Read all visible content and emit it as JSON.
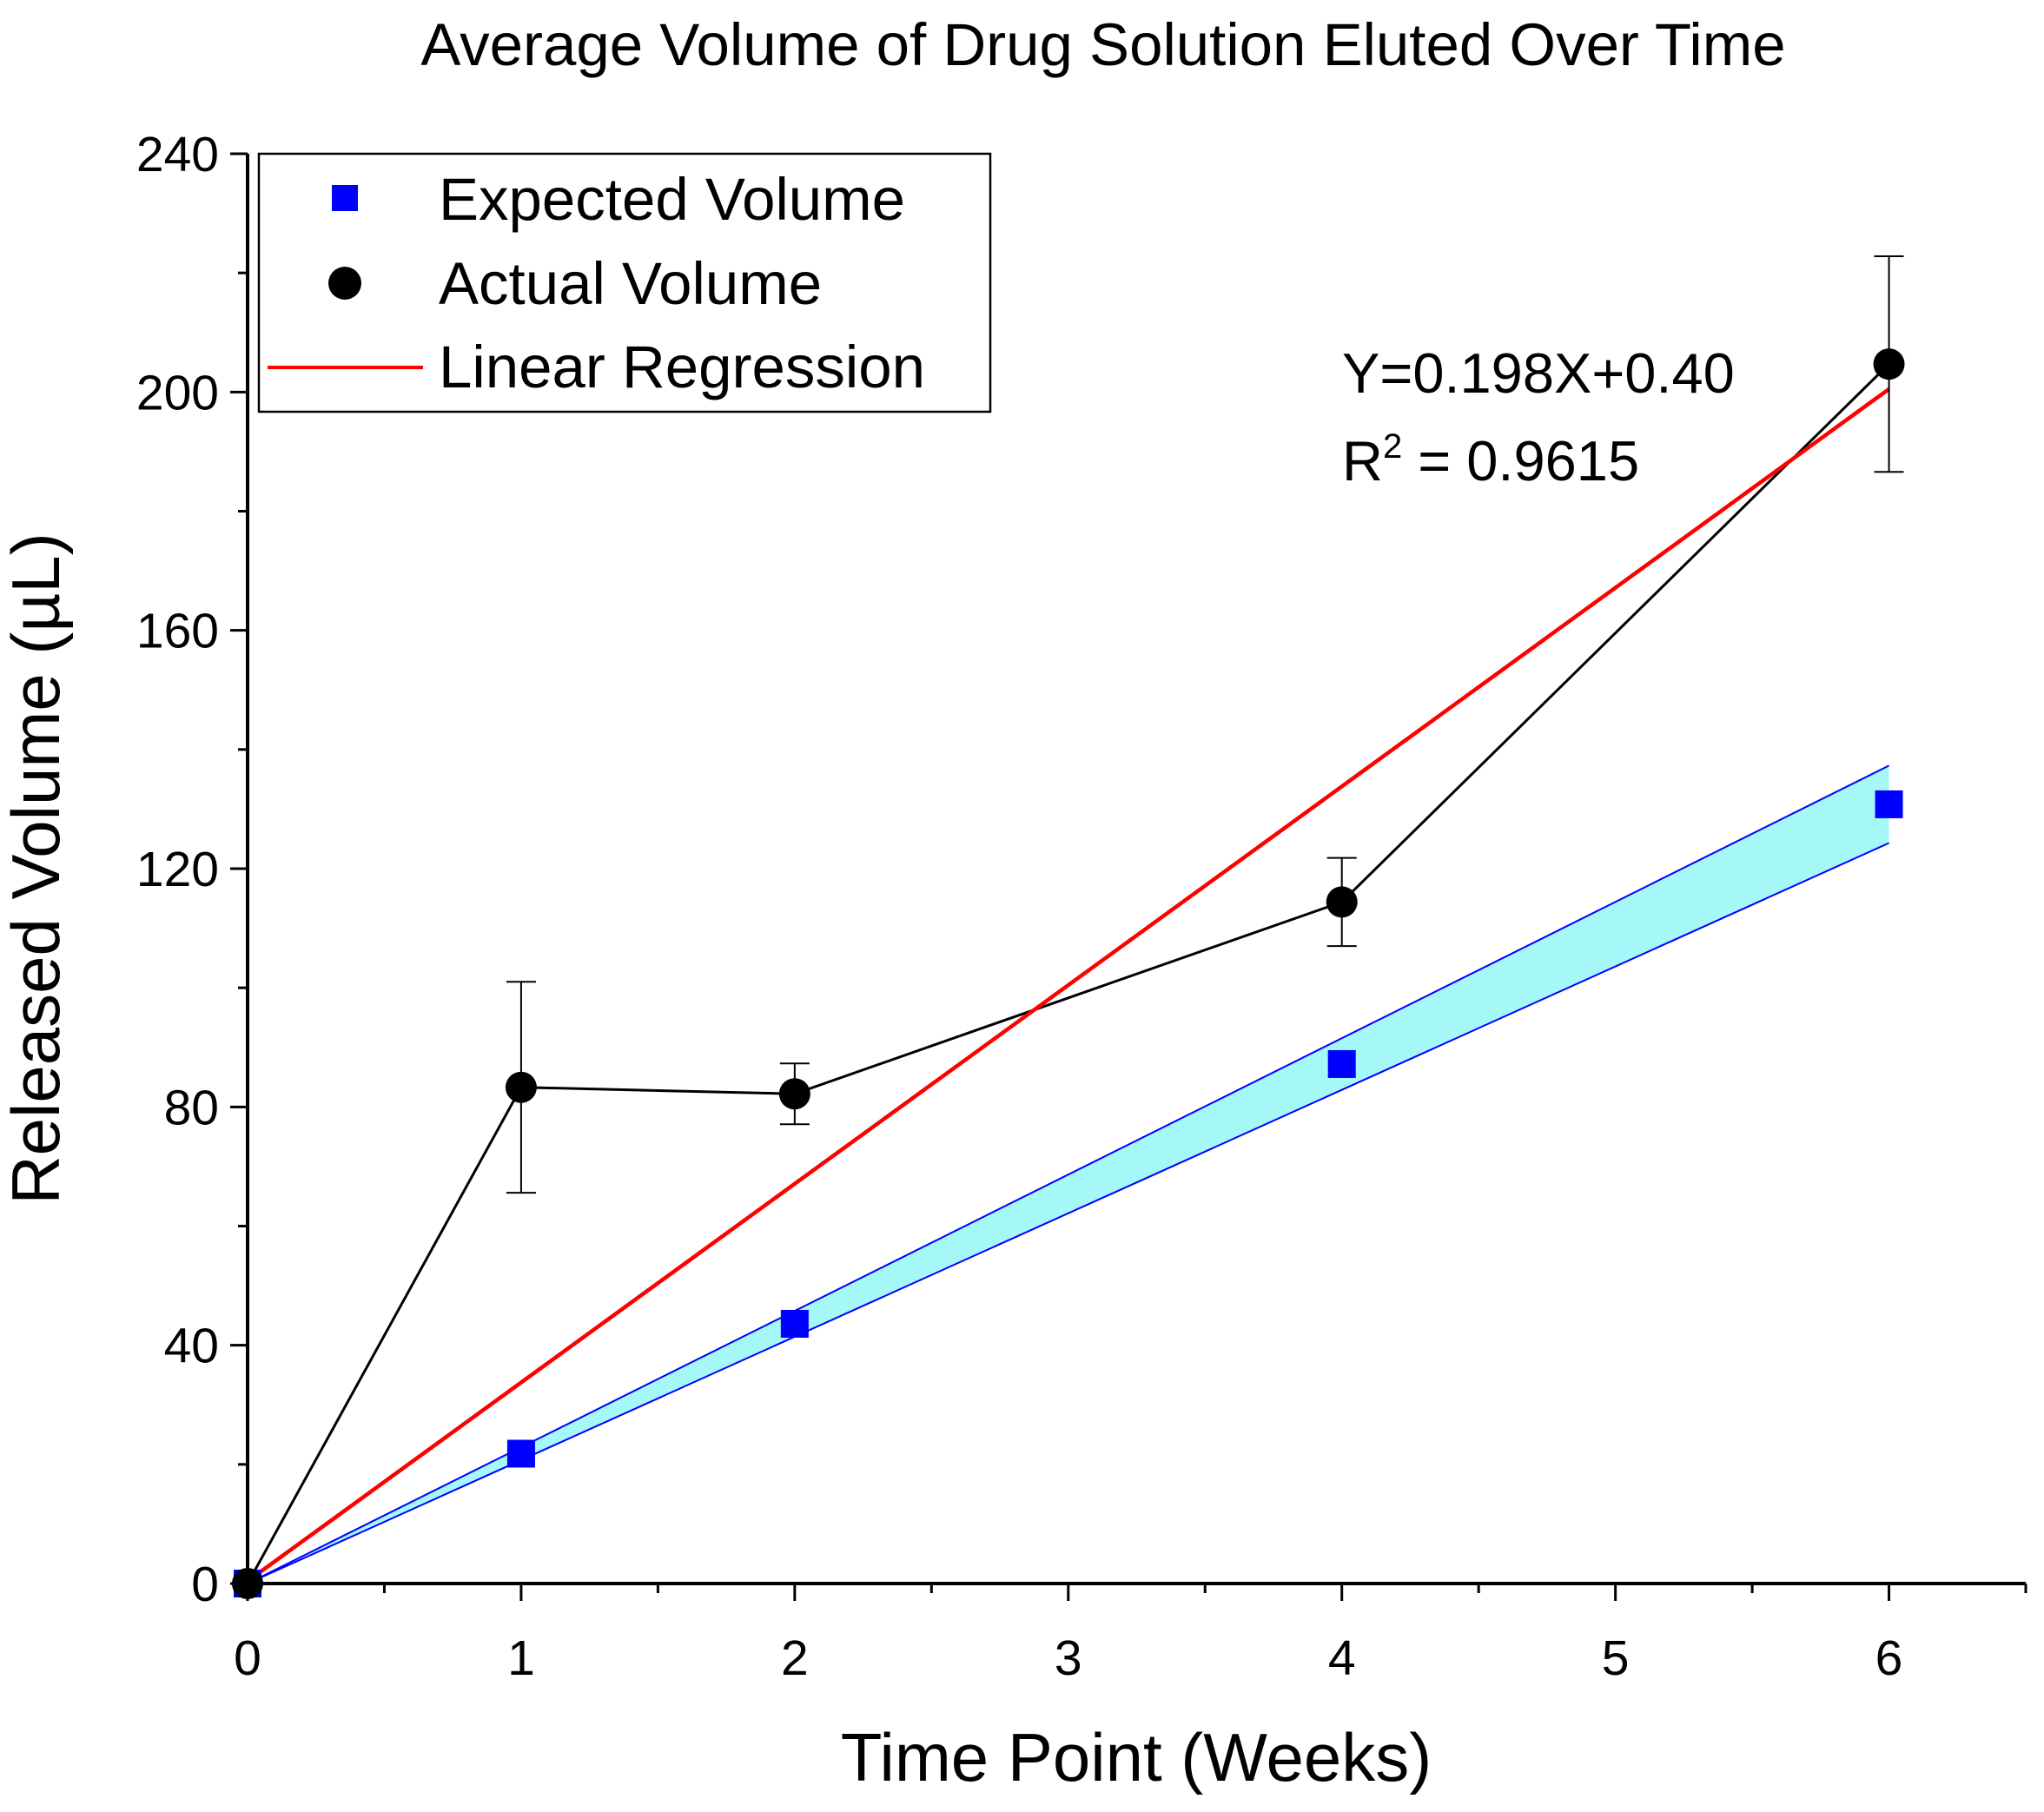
{
  "chart_data": {
    "type": "line",
    "title": "Average Volume of Drug Solution Eluted Over Time",
    "xlabel": "Time Point (Weeks)",
    "ylabel": "Released Volume (µL)",
    "xlim": [
      0,
      6.5
    ],
    "ylim": [
      0,
      240
    ],
    "x_ticks": [
      0,
      1,
      2,
      3,
      4,
      5,
      6
    ],
    "x_tick_labels": [
      "0",
      "1",
      "2",
      "3",
      "4",
      "5",
      "6"
    ],
    "y_ticks": [
      0,
      40,
      80,
      120,
      160,
      200,
      240
    ],
    "y_tick_labels": [
      "0",
      "40",
      "80",
      "120",
      "160",
      "200",
      "240"
    ],
    "grid": false,
    "legend_position": "top-left",
    "series": [
      {
        "name": "Expected Volume",
        "kind": "scatter",
        "marker": "square",
        "color": "#0000FF",
        "x": [
          0,
          1,
          2,
          4,
          6
        ],
        "values": [
          0,
          21.8,
          43.6,
          87.2,
          130.8
        ]
      },
      {
        "name": "Actual Volume",
        "kind": "line+markers",
        "marker": "circle",
        "color": "#000000",
        "x": [
          0,
          1,
          2,
          4,
          6
        ],
        "values": [
          0,
          83.3,
          82.2,
          114.4,
          204.7
        ],
        "error": [
          0,
          17.7,
          5.1,
          7.4,
          18.1
        ]
      },
      {
        "name": "Linear Regression",
        "kind": "line",
        "color": "#FF0000",
        "x": [
          0,
          6
        ],
        "values": [
          0.4,
          200.5
        ]
      }
    ],
    "band": {
      "color": "#A6F7F7",
      "edge_color": "#0000FF",
      "x": [
        0,
        6
      ],
      "upper": [
        0,
        137.3
      ],
      "lower": [
        0,
        124.3
      ]
    },
    "annotations": {
      "equation": "Y=0.198X+0.40",
      "r2_prefix": "R",
      "r2_sup": "2",
      "r2_value": " = 0.9615"
    }
  }
}
